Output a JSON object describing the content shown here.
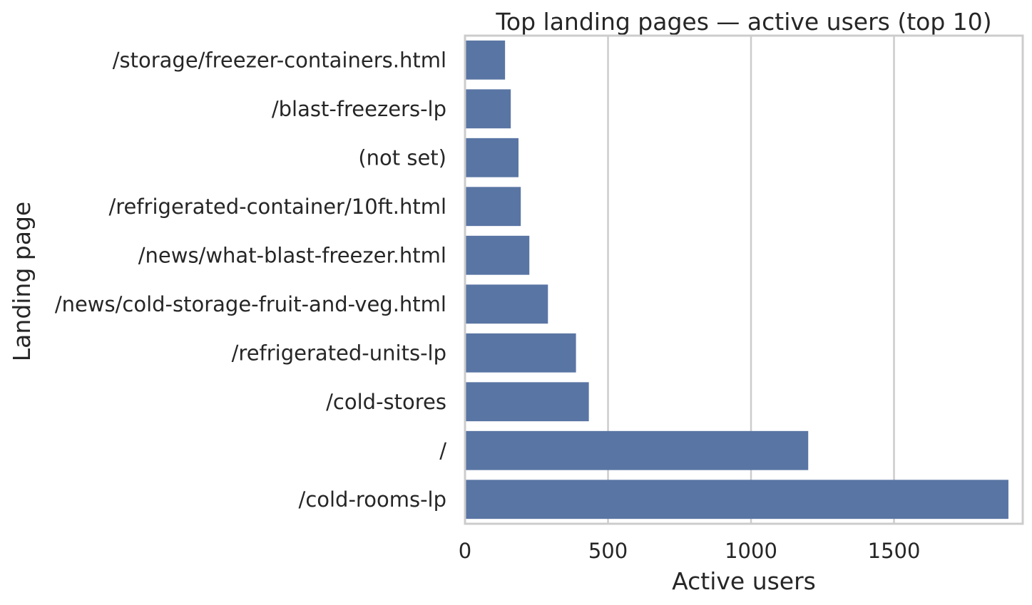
{
  "chart_data": {
    "type": "bar",
    "orientation": "horizontal",
    "title": "Top landing pages — active users (top 10)",
    "xlabel": "Active users",
    "ylabel": "Landing page",
    "categories": [
      "/storage/freezer-containers.html",
      "/blast-freezers-lp",
      "(not set)",
      "/refrigerated-container/10ft.html",
      "/news/what-blast-freezer.html",
      "/news/cold-storage-fruit-and-veg.html",
      "/refrigerated-units-lp",
      "/cold-stores",
      "/",
      "/cold-rooms-lp"
    ],
    "values": [
      140,
      160,
      187,
      195,
      225,
      290,
      388,
      433,
      1200,
      1900
    ],
    "xlim": [
      0,
      1950
    ],
    "xticks": [
      "0",
      "500",
      "1000",
      "1500"
    ],
    "xtick_values": [
      0,
      500,
      1000,
      1500
    ],
    "grid": true,
    "bar_color": "#5975a4",
    "grid_color": "#cccccc",
    "spine_color": "#cccccc"
  }
}
